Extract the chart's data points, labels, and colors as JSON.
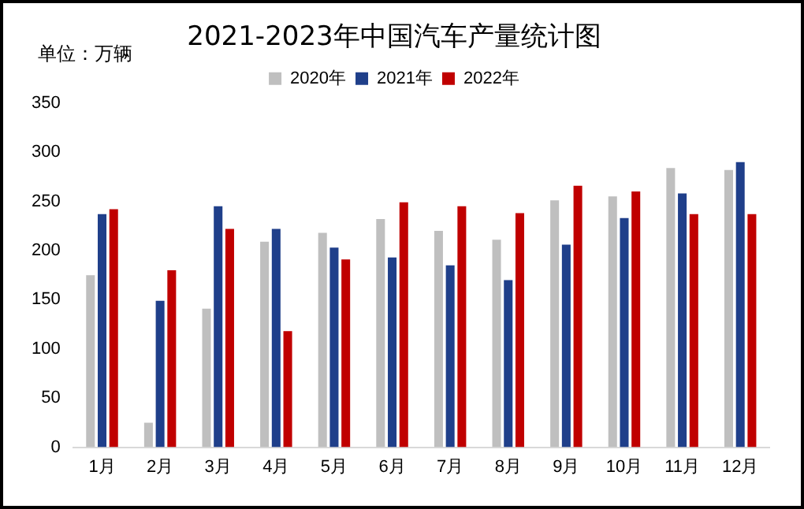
{
  "chart_data": {
    "type": "bar",
    "title": "2021-2023年中国汽车产量统计图",
    "ylabel": "单位：万辆",
    "categories": [
      "1月",
      "2月",
      "3月",
      "4月",
      "5月",
      "6月",
      "7月",
      "8月",
      "9月",
      "10月",
      "11月",
      "12月"
    ],
    "series": [
      {
        "name": "2020年",
        "color": "#bfbfbf",
        "values": [
          175,
          25,
          141,
          209,
          218,
          232,
          220,
          211,
          251,
          255,
          284,
          282
        ]
      },
      {
        "name": "2021年",
        "color": "#1f3f8a",
        "values": [
          237,
          149,
          245,
          222,
          203,
          193,
          185,
          170,
          206,
          233,
          258,
          290
        ]
      },
      {
        "name": "2022年",
        "color": "#c00000",
        "values": [
          242,
          180,
          222,
          118,
          191,
          249,
          245,
          238,
          266,
          260,
          237,
          237
        ]
      }
    ],
    "ylim": [
      0,
      350
    ],
    "yticks": [
      0,
      50,
      100,
      150,
      200,
      250,
      300,
      350
    ],
    "grid": false,
    "legend": "top"
  }
}
